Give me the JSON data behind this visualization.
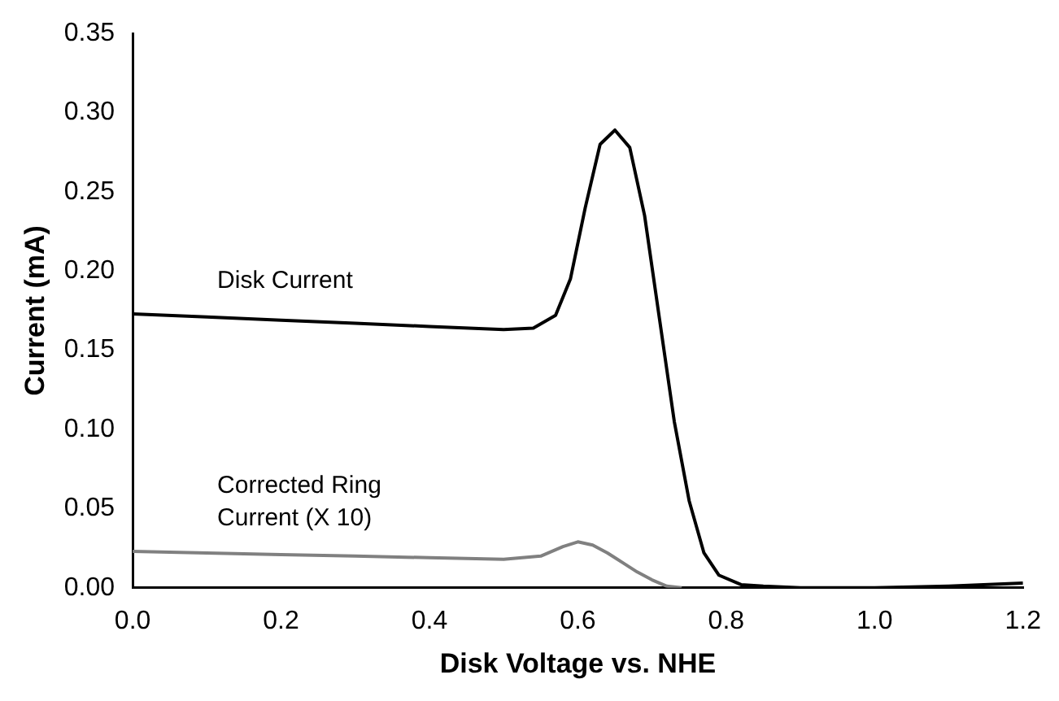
{
  "chart_data": {
    "type": "line",
    "xlabel": "Disk Voltage vs. NHE",
    "ylabel": "Current (mA)",
    "xlim": [
      0,
      1.2
    ],
    "xticks": [
      {
        "value": 0,
        "label": "0.0"
      },
      {
        "value": 0.2,
        "label": "0.2"
      },
      {
        "value": 0.4,
        "label": "0.4"
      },
      {
        "value": 0.6,
        "label": "0.6"
      },
      {
        "value": 0.8,
        "label": "0.8"
      },
      {
        "value": 1,
        "label": "1.0"
      },
      {
        "value": 1.2,
        "label": "1.2"
      }
    ],
    "ylim": [
      0,
      0.35
    ],
    "yticks": [
      {
        "value": 0,
        "label": "0.00"
      },
      {
        "value": 0.05,
        "label": "0.05"
      },
      {
        "value": 0.1,
        "label": "0.10"
      },
      {
        "value": 0.15,
        "label": "0.15"
      },
      {
        "value": 0.2,
        "label": "0.20"
      },
      {
        "value": 0.25,
        "label": "0.25"
      },
      {
        "value": 0.3,
        "label": "0.30"
      },
      {
        "value": 0.35,
        "label": "0.35"
      }
    ],
    "grid": false,
    "legend": false,
    "marker": "none",
    "line_style": "solid",
    "series": [
      {
        "name": "Disk Current",
        "color": "#000000",
        "x": [
          0,
          0.1,
          0.2,
          0.3,
          0.4,
          0.5,
          0.54,
          0.57,
          0.59,
          0.61,
          0.63,
          0.65,
          0.67,
          0.69,
          0.71,
          0.73,
          0.75,
          0.77,
          0.79,
          0.82,
          0.85,
          0.9,
          1.0,
          1.1,
          1.2
        ],
        "values": [
          0.173,
          0.171,
          0.169,
          0.167,
          0.165,
          0.163,
          0.164,
          0.172,
          0.195,
          0.24,
          0.28,
          0.289,
          0.278,
          0.235,
          0.17,
          0.105,
          0.055,
          0.022,
          0.008,
          0.002,
          0.001,
          0,
          0,
          0.001,
          0.003
        ]
      },
      {
        "name": "Corrected Ring\nCurrent (X 10)",
        "color": "#808080",
        "x": [
          0,
          0.1,
          0.2,
          0.3,
          0.4,
          0.5,
          0.55,
          0.58,
          0.6,
          0.62,
          0.64,
          0.66,
          0.68,
          0.7,
          0.72,
          0.74
        ],
        "values": [
          0.023,
          0.022,
          0.021,
          0.02,
          0.019,
          0.018,
          0.02,
          0.026,
          0.029,
          0.027,
          0.022,
          0.016,
          0.01,
          0.005,
          0.001,
          0
        ]
      }
    ]
  }
}
